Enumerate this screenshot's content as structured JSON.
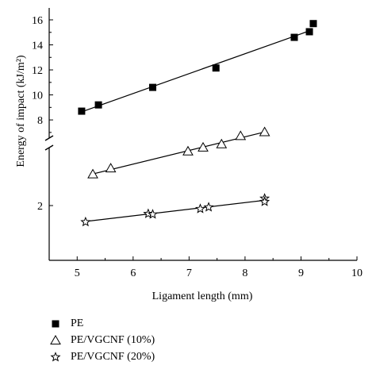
{
  "chart_data": {
    "type": "scatter",
    "xlabel": "Ligament length (mm)",
    "ylabel": "Energy of impact (kJ/m²)",
    "xlim": [
      4.5,
      10
    ],
    "x_ticks": [
      "5",
      "6",
      "7",
      "8",
      "9",
      "10"
    ],
    "y_ticks_upper": [
      "8",
      "10",
      "12",
      "14",
      "16"
    ],
    "y_ticks_lower": [
      "2"
    ],
    "axis_break": true,
    "legend_position": "bottom-left",
    "series": [
      {
        "name": "PE",
        "marker": "square-filled",
        "x": [
          5.08,
          5.38,
          6.35,
          7.48,
          8.88,
          9.15,
          9.22
        ],
        "y": [
          8.7,
          9.2,
          10.6,
          12.15,
          14.6,
          15.05,
          15.7
        ],
        "fit": [
          [
            5.05,
            8.6
          ],
          [
            9.2,
            15.2
          ]
        ]
      },
      {
        "name": "PE/VGCNF (10%)",
        "marker": "triangle-open",
        "x": [
          5.28,
          5.6,
          6.98,
          7.25,
          7.58,
          7.92,
          8.35
        ],
        "y": [
          2.57,
          2.68,
          2.99,
          3.06,
          3.12,
          3.27,
          3.34
        ],
        "fit": [
          [
            5.25,
            2.57
          ],
          [
            8.38,
            3.35
          ]
        ]
      },
      {
        "name": "PE/VGCNF (20%)",
        "marker": "star-open",
        "x": [
          5.15,
          6.27,
          6.35,
          7.2,
          7.35,
          8.35,
          8.35
        ],
        "y": [
          1.7,
          1.85,
          1.84,
          1.94,
          1.97,
          2.13,
          2.07
        ],
        "fit": [
          [
            5.15,
            1.71
          ],
          [
            8.38,
            2.1
          ]
        ]
      }
    ]
  }
}
